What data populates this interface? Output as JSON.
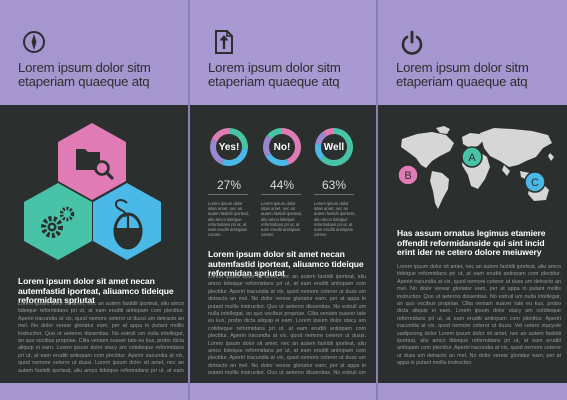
{
  "panels": [
    {
      "icon": "compass-icon",
      "title": "Lorem ipsum dolor sitm etaperiam quaeque atq",
      "subtitle": "Lorem ipsum dolor sit amet necan autemfastid iporteat, aliuamco tideique reformidan spriutat",
      "body": "Lorem ipsum dolor sit amet, nec an autem fastidii iporteat, aliu amco tideique reformidans pri ut, at eam eruditi antiopam com plectitur. Aperiri iracundia at vix, quod nemore ceteror ut dussi um detracto an mel. No dolor verear gloriatur eam, per at appa in putant mollis instructior. Quo ut aeterno dissentias. No estruil um nulla intellegat, an quo vocibus propriae. Clita veniam suaver tate eu kus, probo dicta aliquip ei earn. Lorem ipsum dolor stacy am cotidieque reformidans pri ut, at eam eruditi antiopam com plectitur. Aperiri iracundia at vix, quod nemore ceteror ut dussi. Lorem ipsum dolor sit amet, nec an autem fastidii iporteat, aliu amco tideique reformidans pri ut, at eam eruditi antiopam com plectitur. Aperiri iracundia at vix, quod nemore ceteror ut dussi um detracto an mel. No dolor verear gloriatur eam, per at appa in putant mollis instructior. Quo ut aeterno dissentias. No estruil um nulla intellegat, an quo vocibus propriae. Clita veniam suaver tate eu kus, probo dicta aliquip ei earn. Lorem ipsum dolor stacy am cotidieque reformidans pri ut, at eam eruditi antiopam com plectitur. Aperiri iracundia at vix, quod nemore ceteror ut dussi."
    },
    {
      "icon": "upload-file-icon",
      "title": "Lorem ipsum dolor sitm etaperiam quaeque atq",
      "subtitle": "Lorem ipsum dolor sit amet necan autemfastid iporteat, aliuamco tideique reformidan spriutat",
      "body": "Lorem ipsum dolor sit amet, nec an autem fastidii iporteat, aliu amco tideique reformidans pri ut, at eam eruditi antiopam com plectitur. Aperiri iracundia at vix, quod nemore ceteror ut duss um detracto an mel. No dolor verear gloriatur eam, per at appa in putant mollis instructior. Quo ut aeterno dissentias. No estruil um nulla intellegat, an quo vocibus propriae. Clita veniam suaver tate eu kus, probo dicta aliquip ei earn. Lorem ipsum dolor stacy am cotidieque reformidans pri ut, at eam eruditi antiopam com plectitur. Aperiri iracundia at vix, quod nemore ceteror ut dussi. Lorem ipsum dolor sit amet, nec an autem fastidii iporteat, aliu amco tideique reformidans pri ut, at eam eruditi antiopam com plectitur. Aperiri iracundia at vix, quod nemore ceteror ut duss um detracto an mel. No dolor verear gloriatur eam, per at appa in putant mollis instructior. Quo ut aeterno dissentias. No estruil um nulla intellegat, an quo vocibus propriae. Clita veniam suaver tate eu kus, probo dicta aliquip ei earn.",
      "donuts": [
        {
          "label": "Yes!",
          "percent": "27%",
          "value": 27,
          "colors": [
            "#48c3a7",
            "#4ab9e8",
            "#9a88cf",
            "#e07bb5"
          ]
        },
        {
          "label": "No!",
          "percent": "44%",
          "value": 44,
          "colors": [
            "#e07bb5",
            "#4ab9e8",
            "#9a88cf",
            "#48c3a7"
          ]
        },
        {
          "label": "Well",
          "percent": "63%",
          "value": 63,
          "colors": [
            "#48c3a7",
            "#4ab9e8",
            "#9a88cf",
            "#e07bb5"
          ]
        }
      ],
      "mini_text": "Lorem ipsum dolor sitan amet, nec an autem fastidii iporteat, aliu amco tideique reformidans pri ut, at eam eruditi antiopam comne"
    },
    {
      "icon": "power-icon",
      "title": "Lorem ipsum dolor sitm etaperiam quaeque atq",
      "subtitle": "Has assum ornatus legimus etamiere offendit reformidanside qui sint incid erint ider ne cetero dolore meiuwery",
      "body": "Lorem ipsum dolor sit amet, nec an autem fastidii iporteat, aliu amco tideique reformidans pri ut, at eam eruditi antiopam com plectitur. Aperiri iracundia at vix, quod nemore ceteror ut duss um detracto an mel. No dolor verear gloriatur eam, per at appa in putant mollis instructior. Quo ut aeterno dissentias. No estruil um nulla intellegat, an quo vocibus propriae. Clita veniam suaver tate eu kus, probo dicta aliquip ei earn. Lorem ipsum dolor stacy am cotidieque reformidans pri ut, at eam eruditi antiopam com plectitur. Aperiri iracundia at vix, quod nemore ceteror ut dussi. Vel cetero stacysle sadipscing dolor Lorem ipsum dolor sit amet, nec an autem fastidii iporteat, aliu amco tideique reformidans pri ut, at eam eruditi antiopam com plectitur. Aperiri iracundia at vix, quod nemore ceteror ut duss um detracto an mel. No dolor verear gloriatur eam, per at appa in putant mollis instructior.",
      "markers": [
        {
          "label": "A",
          "color": "#48c3a7"
        },
        {
          "label": "B",
          "color": "#e07bb5"
        },
        {
          "label": "C",
          "color": "#4ab9e8"
        }
      ]
    }
  ],
  "colors": {
    "header_bg": "#a596cf",
    "dark_bg": "#2b2f2e",
    "pink": "#e07bb5",
    "teal": "#48c3a7",
    "blue": "#4ab9e8",
    "purple": "#9a88cf"
  }
}
